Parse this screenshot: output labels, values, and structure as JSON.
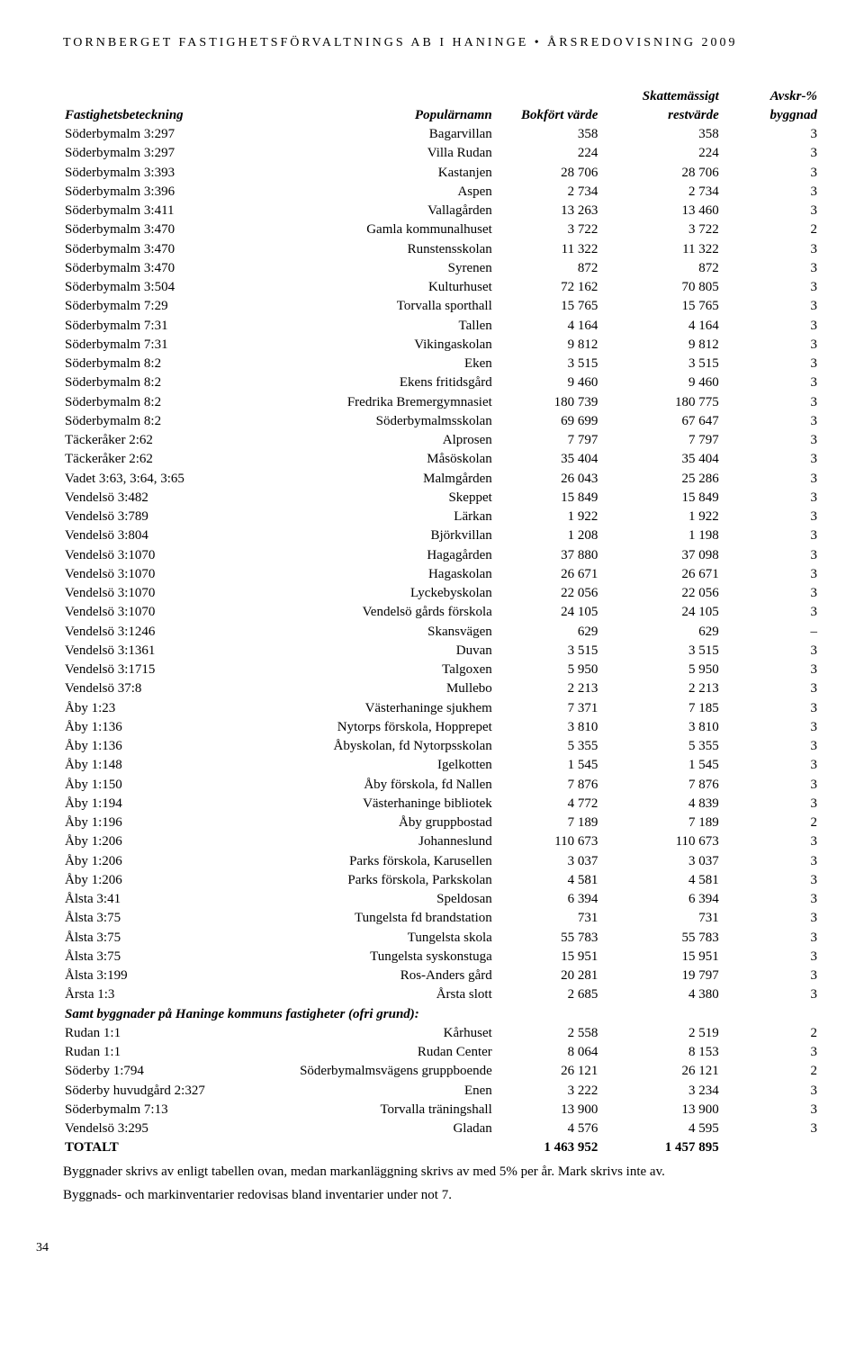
{
  "header": "TORNBERGET FASTIGHETSFÖRVALTNINGS AB I HANINGE • ÅRSREDOVISNING 2009",
  "columns": {
    "fb": "Fastighetsbeteckning",
    "pn": "Populärnamn",
    "bv": "Bokfört värde",
    "sr1": "Skattemässigt",
    "sr2": "restvärde",
    "av1": "Avskr-%",
    "av2": "byggnad"
  },
  "rows1": [
    {
      "fb": "Söderbymalm 3:297",
      "pn": "Bagarvillan",
      "bv": "358",
      "sr": "358",
      "av": "3"
    },
    {
      "fb": "Söderbymalm 3:297",
      "pn": "Villa Rudan",
      "bv": "224",
      "sr": "224",
      "av": "3"
    },
    {
      "fb": "Söderbymalm 3:393",
      "pn": "Kastanjen",
      "bv": "28 706",
      "sr": "28 706",
      "av": "3"
    },
    {
      "fb": "Söderbymalm 3:396",
      "pn": "Aspen",
      "bv": "2 734",
      "sr": "2 734",
      "av": "3"
    },
    {
      "fb": "Söderbymalm 3:411",
      "pn": "Vallagården",
      "bv": "13 263",
      "sr": "13 460",
      "av": "3"
    },
    {
      "fb": "Söderbymalm 3:470",
      "pn": "Gamla kommunalhuset",
      "bv": "3 722",
      "sr": "3 722",
      "av": "2"
    },
    {
      "fb": "Söderbymalm 3:470",
      "pn": "Runstensskolan",
      "bv": "11 322",
      "sr": "11 322",
      "av": "3"
    },
    {
      "fb": "Söderbymalm 3:470",
      "pn": "Syrenen",
      "bv": "872",
      "sr": "872",
      "av": "3"
    },
    {
      "fb": "Söderbymalm 3:504",
      "pn": "Kulturhuset",
      "bv": "72 162",
      "sr": "70 805",
      "av": "3"
    },
    {
      "fb": "Söderbymalm 7:29",
      "pn": "Torvalla sporthall",
      "bv": "15 765",
      "sr": "15 765",
      "av": "3"
    },
    {
      "fb": "Söderbymalm 7:31",
      "pn": "Tallen",
      "bv": "4 164",
      "sr": "4 164",
      "av": "3"
    },
    {
      "fb": "Söderbymalm 7:31",
      "pn": "Vikingaskolan",
      "bv": "9 812",
      "sr": "9 812",
      "av": "3"
    },
    {
      "fb": "Söderbymalm 8:2",
      "pn": "Eken",
      "bv": "3 515",
      "sr": "3 515",
      "av": "3"
    },
    {
      "fb": "Söderbymalm 8:2",
      "pn": "Ekens fritidsgård",
      "bv": "9 460",
      "sr": "9 460",
      "av": "3"
    },
    {
      "fb": "Söderbymalm 8:2",
      "pn": "Fredrika Bremergymnasiet",
      "bv": "180 739",
      "sr": "180 775",
      "av": "3"
    },
    {
      "fb": "Söderbymalm 8:2",
      "pn": "Söderbymalmsskolan",
      "bv": "69 699",
      "sr": "67 647",
      "av": "3"
    },
    {
      "fb": "Täckeråker 2:62",
      "pn": "Alprosen",
      "bv": "7 797",
      "sr": "7 797",
      "av": "3"
    },
    {
      "fb": "Täckeråker 2:62",
      "pn": "Måsöskolan",
      "bv": "35 404",
      "sr": "35 404",
      "av": "3"
    },
    {
      "fb": "Vadet 3:63, 3:64, 3:65",
      "pn": "Malmgården",
      "bv": "26 043",
      "sr": "25 286",
      "av": "3"
    },
    {
      "fb": "Vendelsö 3:482",
      "pn": "Skeppet",
      "bv": "15 849",
      "sr": "15 849",
      "av": "3"
    },
    {
      "fb": "Vendelsö 3:789",
      "pn": "Lärkan",
      "bv": "1 922",
      "sr": "1 922",
      "av": "3"
    },
    {
      "fb": "Vendelsö 3:804",
      "pn": "Björkvillan",
      "bv": "1 208",
      "sr": "1 198",
      "av": "3"
    },
    {
      "fb": "Vendelsö 3:1070",
      "pn": "Hagagården",
      "bv": "37 880",
      "sr": "37 098",
      "av": "3"
    },
    {
      "fb": "Vendelsö 3:1070",
      "pn": "Hagaskolan",
      "bv": "26 671",
      "sr": "26 671",
      "av": "3"
    },
    {
      "fb": "Vendelsö 3:1070",
      "pn": "Lyckebyskolan",
      "bv": "22 056",
      "sr": "22 056",
      "av": "3"
    },
    {
      "fb": "Vendelsö 3:1070",
      "pn": "Vendelsö gårds förskola",
      "bv": "24 105",
      "sr": "24 105",
      "av": "3"
    },
    {
      "fb": "Vendelsö 3:1246",
      "pn": "Skansvägen",
      "bv": "629",
      "sr": "629",
      "av": "–"
    },
    {
      "fb": "Vendelsö 3:1361",
      "pn": "Duvan",
      "bv": "3 515",
      "sr": "3 515",
      "av": "3"
    },
    {
      "fb": "Vendelsö 3:1715",
      "pn": "Talgoxen",
      "bv": "5 950",
      "sr": "5 950",
      "av": "3"
    },
    {
      "fb": "Vendelsö 37:8",
      "pn": "Mullebo",
      "bv": "2 213",
      "sr": "2 213",
      "av": "3"
    },
    {
      "fb": "Åby 1:23",
      "pn": "Västerhaninge sjukhem",
      "bv": "7 371",
      "sr": "7 185",
      "av": "3"
    },
    {
      "fb": "Åby 1:136",
      "pn": "Nytorps förskola, Hopprepet",
      "bv": "3 810",
      "sr": "3 810",
      "av": "3"
    },
    {
      "fb": "Åby 1:136",
      "pn": "Åbyskolan, fd Nytorpsskolan",
      "bv": "5 355",
      "sr": "5 355",
      "av": "3"
    },
    {
      "fb": "Åby 1:148",
      "pn": "Igelkotten",
      "bv": "1 545",
      "sr": "1 545",
      "av": "3"
    },
    {
      "fb": "Åby 1:150",
      "pn": "Åby förskola, fd Nallen",
      "bv": "7 876",
      "sr": "7 876",
      "av": "3"
    },
    {
      "fb": "Åby 1:194",
      "pn": "Västerhaninge bibliotek",
      "bv": "4 772",
      "sr": "4 839",
      "av": "3"
    },
    {
      "fb": "Åby 1:196",
      "pn": "Åby gruppbostad",
      "bv": "7 189",
      "sr": "7 189",
      "av": "2"
    },
    {
      "fb": "Åby 1:206",
      "pn": "Johanneslund",
      "bv": "110 673",
      "sr": "110 673",
      "av": "3"
    },
    {
      "fb": "Åby 1:206",
      "pn": "Parks förskola, Karusellen",
      "bv": "3 037",
      "sr": "3 037",
      "av": "3"
    },
    {
      "fb": "Åby 1:206",
      "pn": "Parks förskola, Parkskolan",
      "bv": "4 581",
      "sr": "4 581",
      "av": "3"
    },
    {
      "fb": "Ålsta 3:41",
      "pn": "Speldosan",
      "bv": "6 394",
      "sr": "6 394",
      "av": "3"
    },
    {
      "fb": "Ålsta 3:75",
      "pn": "Tungelsta fd brandstation",
      "bv": "731",
      "sr": "731",
      "av": "3"
    },
    {
      "fb": "Ålsta 3:75",
      "pn": "Tungelsta skola",
      "bv": "55 783",
      "sr": "55 783",
      "av": "3"
    },
    {
      "fb": "Ålsta 3:75",
      "pn": "Tungelsta syskonstuga",
      "bv": "15 951",
      "sr": "15 951",
      "av": "3"
    },
    {
      "fb": "Ålsta 3:199",
      "pn": "Ros-Anders gård",
      "bv": "20 281",
      "sr": "19 797",
      "av": "3"
    },
    {
      "fb": "Årsta 1:3",
      "pn": "Årsta slott",
      "bv": "2 685",
      "sr": "4 380",
      "av": "3"
    }
  ],
  "section2_header": "Samt byggnader på Haninge kommuns fastigheter (ofri grund):",
  "rows2": [
    {
      "fb": "Rudan 1:1",
      "pn": "Kårhuset",
      "bv": "2 558",
      "sr": "2 519",
      "av": "2"
    },
    {
      "fb": "Rudan 1:1",
      "pn": "Rudan Center",
      "bv": "8 064",
      "sr": "8 153",
      "av": "3"
    },
    {
      "fb": "Söderby 1:794",
      "pn": "Söderbymalmsvägens gruppboende",
      "bv": "26 121",
      "sr": "26 121",
      "av": "2"
    },
    {
      "fb": "Söderby huvudgård 2:327",
      "pn": "Enen",
      "bv": "3 222",
      "sr": "3 234",
      "av": "3"
    },
    {
      "fb": "Söderbymalm 7:13",
      "pn": "Torvalla träningshall",
      "bv": "13 900",
      "sr": "13 900",
      "av": "3"
    },
    {
      "fb": "Vendelsö 3:295",
      "pn": "Gladan",
      "bv": "4 576",
      "sr": "4 595",
      "av": "3"
    }
  ],
  "total": {
    "label": "TOTALT",
    "bv": "1 463 952",
    "sr": "1 457 895"
  },
  "footnote1": "Byggnader skrivs av enligt tabellen ovan, medan markanläggning skrivs av med 5% per år. Mark skrivs inte av.",
  "footnote2": "Byggnads- och markinventarier redovisas bland inventarier under not 7.",
  "pagenum": "34"
}
